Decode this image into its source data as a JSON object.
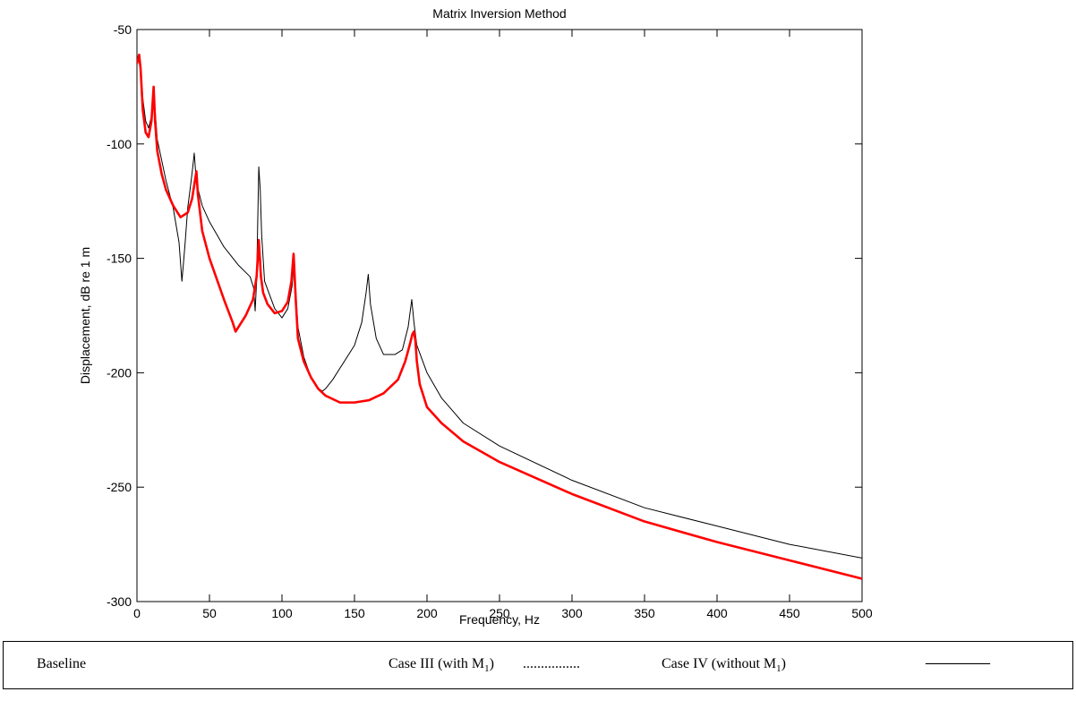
{
  "chart_data": {
    "type": "line",
    "title": "Matrix Inversion Method",
    "xlabel": "Frequency, Hz",
    "ylabel": "Displacement, dB re 1 m",
    "xlim": [
      0,
      500
    ],
    "ylim": [
      -300,
      -50
    ],
    "xticks": [
      0,
      50,
      100,
      150,
      200,
      250,
      300,
      350,
      400,
      450,
      500
    ],
    "yticks": [
      -300,
      -250,
      -200,
      -150,
      -100,
      -50
    ],
    "xtick_labels": [
      "0",
      "50",
      "100",
      "150",
      "200",
      "250",
      "300",
      "350",
      "400",
      "450",
      "500"
    ],
    "ytick_labels": [
      "-300",
      "-250",
      "-200",
      "-150",
      "-100",
      "-50"
    ],
    "grid": false,
    "series": [
      {
        "color": "#000000",
        "x": [
          0,
          1.5,
          2.5,
          4,
          6,
          8,
          10,
          11.5,
          12.5,
          14,
          17,
          20,
          25,
          29,
          31,
          33,
          35,
          37,
          38.5,
          39.5,
          41,
          45,
          50,
          60,
          70,
          78,
          80.5,
          81.5,
          82.5,
          84,
          85,
          86,
          88,
          95,
          100,
          104,
          107,
          108.5,
          109.5,
          111,
          115,
          120,
          125,
          128,
          130,
          135,
          140,
          150,
          155,
          158,
          159.5,
          161,
          165,
          170,
          178,
          183,
          187,
          189.5,
          191,
          193,
          200,
          210,
          225,
          250,
          300,
          350,
          400,
          450,
          500
        ],
        "y": [
          -65,
          -62,
          -66,
          -80,
          -90,
          -93,
          -88,
          -78,
          -85,
          -98,
          -107,
          -116,
          -128,
          -143,
          -160,
          -145,
          -128,
          -118,
          -110,
          -104,
          -117,
          -127,
          -134,
          -145,
          -153,
          -158,
          -163,
          -173,
          -160,
          -110,
          -120,
          -140,
          -160,
          -172,
          -176,
          -172,
          -162,
          -150,
          -165,
          -180,
          -193,
          -202,
          -207,
          -208,
          -207,
          -203,
          -198,
          -188,
          -178,
          -165,
          -157,
          -170,
          -185,
          -192,
          -192,
          -190,
          -180,
          -168,
          -178,
          -188,
          -200,
          -211,
          -222,
          -232,
          -247,
          -259,
          -267,
          -275,
          -281
        ]
      },
      {
        "color": "#ff0000",
        "x": [
          0,
          1.5,
          2.5,
          4,
          6,
          8,
          10,
          11.5,
          12.5,
          14,
          17,
          20,
          25,
          30,
          35,
          38,
          39.5,
          41,
          42,
          45,
          50,
          60,
          66,
          68,
          70,
          75,
          80,
          82.5,
          84,
          85.5,
          87,
          90,
          95,
          100,
          104,
          106.5,
          108,
          109.5,
          111,
          115,
          120,
          125,
          130,
          140,
          150,
          160,
          170,
          180,
          185,
          188,
          190,
          191,
          192,
          193,
          195,
          200,
          210,
          225,
          250,
          300,
          350,
          400,
          450,
          500
        ],
        "y": [
          -65,
          -61,
          -67,
          -85,
          -95,
          -97,
          -90,
          -75,
          -90,
          -103,
          -113,
          -120,
          -127,
          -132,
          -130,
          -124,
          -118,
          -112,
          -122,
          -138,
          -150,
          -168,
          -178,
          -182,
          -180,
          -175,
          -168,
          -158,
          -142,
          -158,
          -165,
          -170,
          -174,
          -173,
          -169,
          -160,
          -148,
          -168,
          -185,
          -195,
          -202,
          -207,
          -210,
          -213,
          -213,
          -212,
          -209,
          -203,
          -195,
          -188,
          -183,
          -182,
          -186,
          -195,
          -205,
          -215,
          -222,
          -230,
          -239,
          -253,
          -265,
          -274,
          -282,
          -290
        ]
      }
    ],
    "legend": {
      "items": [
        {
          "label": "Baseline"
        },
        {
          "label_main": "Case III (with M",
          "label_sub": "1",
          "label_end": ")",
          "marker": "................"
        },
        {
          "label_main": "Case IV (without M",
          "label_sub": "1",
          "label_end": ")",
          "marker": "_________"
        }
      ]
    }
  }
}
